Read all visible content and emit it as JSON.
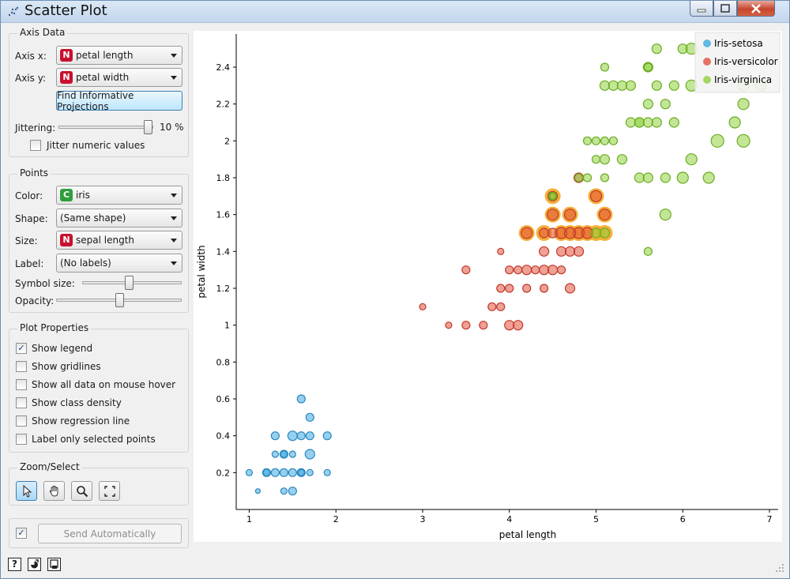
{
  "window": {
    "title": "Scatter Plot"
  },
  "axis_data": {
    "group_title": "Axis Data",
    "x_label": "Axis x:",
    "x_badge": "N",
    "x_value": "petal length",
    "y_label": "Axis y:",
    "y_badge": "N",
    "y_value": "petal width",
    "find_button": "Find Informative Projections",
    "jitter_label": "Jittering:",
    "jitter_value": "10 %",
    "jitter_level_percent": 10,
    "jitter_numeric_label": "Jitter numeric values",
    "jitter_numeric_checked": false
  },
  "points": {
    "group_title": "Points",
    "color_label": "Color:",
    "color_badge": "C",
    "color_value": "iris",
    "shape_label": "Shape:",
    "shape_value": "(Same shape)",
    "size_label": "Size:",
    "size_badge": "N",
    "size_value": "sepal length",
    "label_label": "Label:",
    "label_value": "(No labels)",
    "symbol_size_label": "Symbol size:",
    "opacity_label": "Opacity:"
  },
  "plot_properties": {
    "group_title": "Plot Properties",
    "options": [
      {
        "label": "Show legend",
        "checked": true
      },
      {
        "label": "Show gridlines",
        "checked": false
      },
      {
        "label": "Show all data on mouse hover",
        "checked": false
      },
      {
        "label": "Show class density",
        "checked": false
      },
      {
        "label": "Show regression line",
        "checked": false
      },
      {
        "label": "Label only selected points",
        "checked": false
      }
    ]
  },
  "zoom_select": {
    "group_title": "Zoom/Select",
    "tools": [
      {
        "icon": "pointer-icon",
        "active": true
      },
      {
        "icon": "hand-pan-icon",
        "active": false
      },
      {
        "icon": "magnifier-icon",
        "active": false
      },
      {
        "icon": "fit-view-icon",
        "active": false
      }
    ]
  },
  "send": {
    "checked": true,
    "label": "Send Automatically"
  },
  "status_icons": [
    "help-icon",
    "report-icon",
    "visual-settings-icon"
  ],
  "colors": {
    "setosa": "#3fa9e0",
    "versicolor": "#e0533d",
    "virginica": "#8fd13f",
    "selection": "#f5a623"
  },
  "chart_data": {
    "type": "scatter",
    "xlabel": "petal length",
    "ylabel": "petal width",
    "xlim": [
      0.85,
      7.1
    ],
    "ylim": [
      0.0,
      2.58
    ],
    "xticks": [
      1,
      2,
      3,
      4,
      5,
      6,
      7
    ],
    "yticks": [
      0.2,
      0.4,
      0.6,
      0.8,
      1,
      1.2,
      1.4,
      1.6,
      1.8,
      2,
      2.2,
      2.4
    ],
    "ytick_labels": [
      "0.2",
      "0.4",
      "0.6",
      "0.8",
      "1",
      "1.2",
      "1.4",
      "1.6",
      "1.8",
      "2",
      "2.2",
      "2.4"
    ],
    "legend": {
      "placement": "top-right",
      "entries": [
        "Iris-setosa",
        "Iris-versicolor",
        "Iris-virginica"
      ]
    },
    "grid": false,
    "series": [
      {
        "name": "Iris-setosa",
        "points": [
          [
            1.0,
            0.2,
            4
          ],
          [
            1.1,
            0.1,
            3
          ],
          [
            1.2,
            0.2,
            4
          ],
          [
            1.2,
            0.2,
            5
          ],
          [
            1.3,
            0.2,
            5
          ],
          [
            1.3,
            0.3,
            4
          ],
          [
            1.3,
            0.4,
            5
          ],
          [
            1.4,
            0.1,
            4
          ],
          [
            1.4,
            0.2,
            5
          ],
          [
            1.4,
            0.3,
            4
          ],
          [
            1.5,
            0.1,
            5
          ],
          [
            1.5,
            0.2,
            5
          ],
          [
            1.5,
            0.4,
            6
          ],
          [
            1.6,
            0.2,
            5
          ],
          [
            1.6,
            0.4,
            5
          ],
          [
            1.6,
            0.6,
            5
          ],
          [
            1.7,
            0.2,
            4
          ],
          [
            1.7,
            0.3,
            6
          ],
          [
            1.7,
            0.4,
            5
          ],
          [
            1.7,
            0.5,
            5
          ],
          [
            1.9,
            0.2,
            4
          ],
          [
            1.9,
            0.4,
            5
          ],
          [
            1.4,
            0.3,
            5
          ],
          [
            1.5,
            0.3,
            4
          ],
          [
            1.6,
            0.2,
            4
          ]
        ]
      },
      {
        "name": "Iris-versicolor",
        "points": [
          [
            3.0,
            1.1,
            4
          ],
          [
            3.3,
            1.0,
            4
          ],
          [
            3.5,
            1.0,
            5
          ],
          [
            3.7,
            1.0,
            5
          ],
          [
            3.5,
            1.3,
            5
          ],
          [
            3.8,
            1.1,
            5
          ],
          [
            3.9,
            1.1,
            5
          ],
          [
            3.9,
            1.2,
            5
          ],
          [
            3.9,
            1.4,
            4
          ],
          [
            4.0,
            1.0,
            6
          ],
          [
            4.0,
            1.2,
            5
          ],
          [
            4.0,
            1.3,
            5
          ],
          [
            4.1,
            1.0,
            6
          ],
          [
            4.1,
            1.3,
            5
          ],
          [
            4.2,
            1.2,
            5
          ],
          [
            4.2,
            1.3,
            6
          ],
          [
            4.3,
            1.3,
            5
          ],
          [
            4.4,
            1.2,
            5
          ],
          [
            4.4,
            1.3,
            6
          ],
          [
            4.4,
            1.4,
            6
          ],
          [
            4.5,
            1.3,
            6
          ],
          [
            4.5,
            1.5,
            6
          ],
          [
            4.6,
            1.3,
            5
          ],
          [
            4.6,
            1.4,
            6
          ],
          [
            4.7,
            1.2,
            6
          ],
          [
            4.7,
            1.4,
            6
          ],
          [
            4.8,
            1.4,
            6
          ],
          [
            4.2,
            1.5,
            7
          ],
          [
            4.5,
            1.6,
            7
          ],
          [
            4.5,
            1.7,
            6
          ],
          [
            4.6,
            1.5,
            7
          ],
          [
            4.7,
            1.6,
            7
          ],
          [
            4.8,
            1.5,
            7
          ],
          [
            4.8,
            1.8,
            6
          ],
          [
            4.9,
            1.5,
            7
          ],
          [
            5.0,
            1.7,
            7
          ],
          [
            5.1,
            1.6,
            7
          ],
          [
            4.7,
            1.5,
            7
          ],
          [
            4.4,
            1.5,
            6
          ]
        ],
        "highlighted": [
          [
            4.2,
            1.5
          ],
          [
            4.5,
            1.6
          ],
          [
            4.5,
            1.7
          ],
          [
            4.6,
            1.5
          ],
          [
            4.7,
            1.6
          ],
          [
            4.8,
            1.5
          ],
          [
            4.9,
            1.5
          ],
          [
            5.0,
            1.7
          ],
          [
            5.1,
            1.6
          ],
          [
            4.7,
            1.5
          ],
          [
            4.4,
            1.5
          ],
          [
            5.0,
            1.5
          ],
          [
            5.1,
            1.5
          ]
        ]
      },
      {
        "name": "Iris-virginica",
        "points": [
          [
            4.5,
            1.7,
            5
          ],
          [
            4.8,
            1.8,
            5
          ],
          [
            4.9,
            1.8,
            5
          ],
          [
            4.9,
            2.0,
            5
          ],
          [
            5.0,
            1.5,
            6
          ],
          [
            5.0,
            1.9,
            5
          ],
          [
            5.0,
            2.0,
            5
          ],
          [
            5.1,
            1.5,
            6
          ],
          [
            5.1,
            1.8,
            5
          ],
          [
            5.1,
            1.9,
            6
          ],
          [
            5.1,
            2.0,
            5
          ],
          [
            5.1,
            2.3,
            6
          ],
          [
            5.1,
            2.4,
            5
          ],
          [
            5.2,
            2.0,
            5
          ],
          [
            5.2,
            2.3,
            6
          ],
          [
            5.3,
            1.9,
            6
          ],
          [
            5.3,
            2.3,
            6
          ],
          [
            5.4,
            2.1,
            6
          ],
          [
            5.4,
            2.3,
            6
          ],
          [
            5.5,
            1.8,
            6
          ],
          [
            5.5,
            2.1,
            6
          ],
          [
            5.5,
            2.1,
            6
          ],
          [
            5.6,
            1.4,
            5
          ],
          [
            5.6,
            1.8,
            6
          ],
          [
            5.6,
            2.1,
            6
          ],
          [
            5.6,
            2.2,
            6
          ],
          [
            5.6,
            2.4,
            6
          ],
          [
            5.7,
            2.1,
            6
          ],
          [
            5.7,
            2.3,
            6
          ],
          [
            5.7,
            2.5,
            6
          ],
          [
            5.8,
            1.6,
            7
          ],
          [
            5.8,
            1.8,
            6
          ],
          [
            5.8,
            2.2,
            6
          ],
          [
            5.9,
            2.1,
            6
          ],
          [
            5.9,
            2.3,
            6
          ],
          [
            6.0,
            1.8,
            7
          ],
          [
            6.0,
            2.5,
            6
          ],
          [
            6.1,
            1.9,
            7
          ],
          [
            6.1,
            2.3,
            7
          ],
          [
            6.1,
            2.5,
            7
          ],
          [
            6.3,
            1.8,
            7
          ],
          [
            6.4,
            2.0,
            8
          ],
          [
            6.6,
            2.1,
            7
          ],
          [
            6.7,
            2.0,
            8
          ],
          [
            6.7,
            2.2,
            7
          ],
          [
            6.7,
            2.3,
            7
          ],
          [
            6.9,
            2.3,
            7
          ],
          [
            5.6,
            2.4,
            5
          ],
          [
            4.5,
            1.7,
            4
          ]
        ]
      }
    ]
  }
}
